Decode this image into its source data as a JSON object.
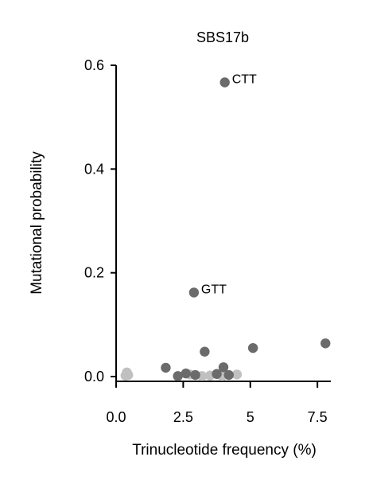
{
  "chart_data": {
    "type": "scatter",
    "title": "SBS17b",
    "xlabel": "Trinucleotide frequency (%)",
    "ylabel": "Mutational probability",
    "xlim": [
      0,
      8
    ],
    "ylim": [
      0,
      0.6
    ],
    "xticks": [
      0.0,
      2.5,
      5,
      7.5
    ],
    "xtick_labels": [
      "0.0",
      "2.5",
      "5",
      "7.5"
    ],
    "yticks": [
      0.0,
      0.2,
      0.4,
      0.6
    ],
    "ytick_labels": [
      "0.0",
      "0.2",
      "0.4",
      "0.6"
    ],
    "grid": false,
    "colors": {
      "dark": "#6b6b6b",
      "light": "#c0c0c0",
      "axis": "#000000"
    },
    "points": [
      {
        "x": 4.05,
        "y": 0.567,
        "label": "CTT",
        "shade": "dark"
      },
      {
        "x": 2.9,
        "y": 0.162,
        "label": "GTT",
        "shade": "dark"
      },
      {
        "x": 7.8,
        "y": 0.064,
        "shade": "dark"
      },
      {
        "x": 5.1,
        "y": 0.055,
        "shade": "dark"
      },
      {
        "x": 3.3,
        "y": 0.048,
        "shade": "dark"
      },
      {
        "x": 1.85,
        "y": 0.017,
        "shade": "dark"
      },
      {
        "x": 4.0,
        "y": 0.018,
        "shade": "dark"
      },
      {
        "x": 2.6,
        "y": 0.006,
        "shade": "dark"
      },
      {
        "x": 2.3,
        "y": 0.001,
        "shade": "dark"
      },
      {
        "x": 2.95,
        "y": 0.003,
        "shade": "dark"
      },
      {
        "x": 3.75,
        "y": 0.005,
        "shade": "dark"
      },
      {
        "x": 4.2,
        "y": 0.003,
        "shade": "dark"
      },
      {
        "x": 0.4,
        "y": 0.008,
        "shade": "light"
      },
      {
        "x": 0.45,
        "y": 0.003,
        "shade": "light"
      },
      {
        "x": 0.35,
        "y": 0.002,
        "shade": "light"
      },
      {
        "x": 2.75,
        "y": 0.004,
        "shade": "light"
      },
      {
        "x": 3.2,
        "y": 0.001,
        "shade": "light"
      },
      {
        "x": 3.5,
        "y": 0.002,
        "shade": "light"
      },
      {
        "x": 3.95,
        "y": 0.001,
        "shade": "light"
      },
      {
        "x": 4.5,
        "y": 0.004,
        "shade": "light"
      }
    ]
  }
}
